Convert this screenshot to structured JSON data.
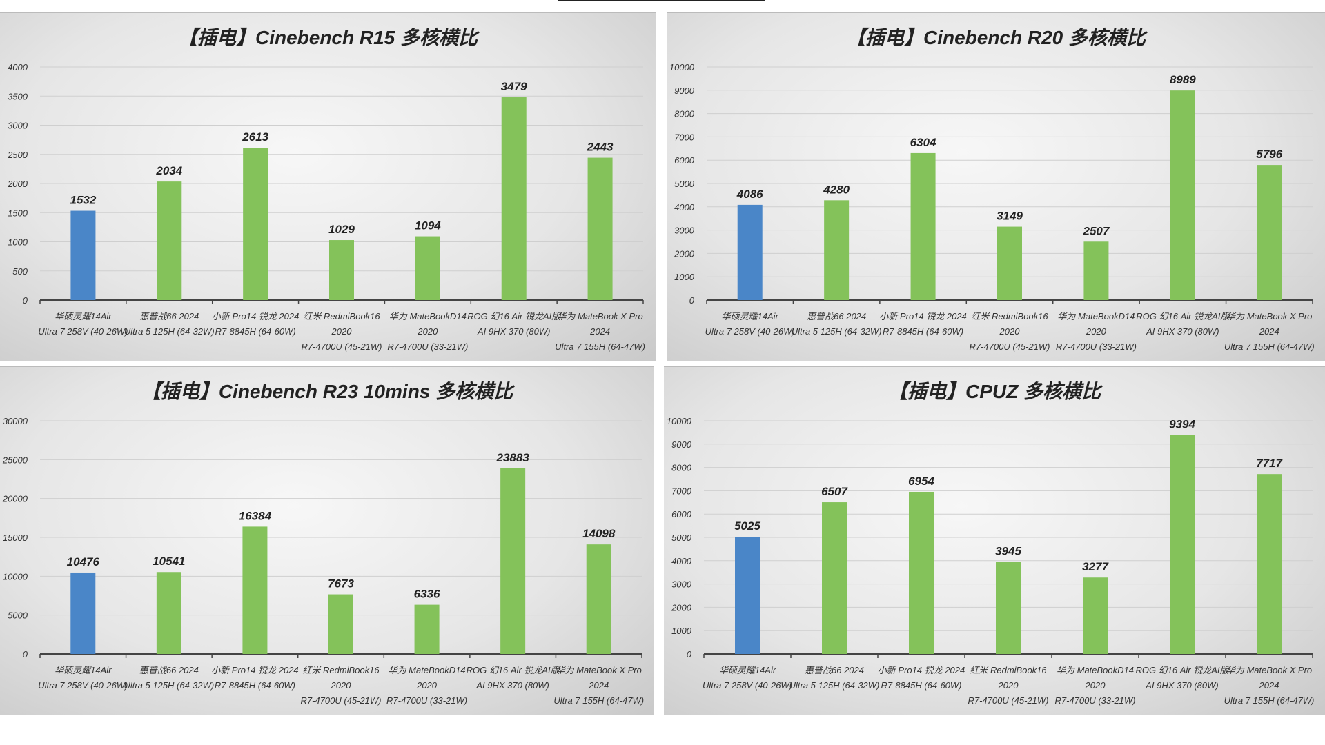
{
  "colors": {
    "highlight": "#4a86c8",
    "bar": "#84c25a",
    "axis": "#444444",
    "grid": "#cfcfcf"
  },
  "chart_data": [
    {
      "type": "bar",
      "title": "【插电】Cinebench R15 多核横比",
      "ylim": [
        0,
        4000
      ],
      "ystep": 500,
      "highlight_index": 0,
      "categories": [
        [
          "华硕灵耀14Air",
          "Ultra 7 258V (40-26W)"
        ],
        [
          "惠普战66 2024",
          "Ultra 5 125H (64-32W)"
        ],
        [
          "小新 Pro14 锐龙 2024",
          "R7-8845H (64-60W)"
        ],
        [
          "红米 RedmiBook16",
          "2020",
          "R7-4700U (45-21W)"
        ],
        [
          "华为 MateBookD14",
          "2020",
          "R7-4700U (33-21W)"
        ],
        [
          "ROG 幻16 Air 锐龙AI版",
          "AI 9HX 370 (80W)"
        ],
        [
          "华为 MateBook X Pro",
          "2024",
          "Ultra 7 155H (64-47W)"
        ]
      ],
      "values": [
        1532,
        2034,
        2613,
        1029,
        1094,
        3479,
        2443
      ]
    },
    {
      "type": "bar",
      "title": "【插电】Cinebench R20 多核横比",
      "ylim": [
        0,
        10000
      ],
      "ystep": 1000,
      "highlight_index": 0,
      "categories": [
        [
          "华硕灵耀14Air",
          "Ultra 7 258V (40-26W)"
        ],
        [
          "惠普战66 2024",
          "Ultra 5 125H (64-32W)"
        ],
        [
          "小新 Pro14 锐龙 2024",
          "R7-8845H (64-60W)"
        ],
        [
          "红米 RedmiBook16",
          "2020",
          "R7-4700U (45-21W)"
        ],
        [
          "华为 MateBookD14",
          "2020",
          "R7-4700U (33-21W)"
        ],
        [
          "ROG 幻16 Air 锐龙AI版",
          "AI 9HX 370 (80W)"
        ],
        [
          "华为 MateBook X Pro",
          "2024",
          "Ultra 7 155H (64-47W)"
        ]
      ],
      "values": [
        4086,
        4280,
        6304,
        3149,
        2507,
        8989,
        5796
      ]
    },
    {
      "type": "bar",
      "title": "【插电】Cinebench R23 10mins 多核横比",
      "ylim": [
        0,
        30000
      ],
      "ystep": 5000,
      "highlight_index": 0,
      "categories": [
        [
          "华硕灵耀14Air",
          "Ultra 7 258V (40-26W)"
        ],
        [
          "惠普战66 2024",
          "Ultra 5 125H (64-32W)"
        ],
        [
          "小新 Pro14 锐龙 2024",
          "R7-8845H (64-60W)"
        ],
        [
          "红米 RedmiBook16",
          "2020",
          "R7-4700U (45-21W)"
        ],
        [
          "华为 MateBookD14",
          "2020",
          "R7-4700U (33-21W)"
        ],
        [
          "ROG 幻16 Air 锐龙AI版",
          "AI 9HX 370 (80W)"
        ],
        [
          "华为 MateBook X Pro",
          "2024",
          "Ultra 7 155H (64-47W)"
        ]
      ],
      "values": [
        10476,
        10541,
        16384,
        7673,
        6336,
        23883,
        14098
      ]
    },
    {
      "type": "bar",
      "title": "【插电】CPUZ 多核横比",
      "ylim": [
        0,
        10000
      ],
      "ystep": 1000,
      "highlight_index": 0,
      "categories": [
        [
          "华硕灵耀14Air",
          "Ultra 7 258V (40-26W)"
        ],
        [
          "惠普战66 2024",
          "Ultra 5 125H (64-32W)"
        ],
        [
          "小新 Pro14 锐龙 2024",
          "R7-8845H (64-60W)"
        ],
        [
          "红米 RedmiBook16",
          "2020",
          "R7-4700U (45-21W)"
        ],
        [
          "华为 MateBookD14",
          "2020",
          "R7-4700U (33-21W)"
        ],
        [
          "ROG 幻16 Air 锐龙AI版",
          "AI 9HX 370 (80W)"
        ],
        [
          "华为 MateBook X Pro",
          "2024",
          "Ultra 7 155H (64-47W)"
        ]
      ],
      "values": [
        5025,
        6507,
        6954,
        3945,
        3277,
        9394,
        7717
      ]
    }
  ]
}
